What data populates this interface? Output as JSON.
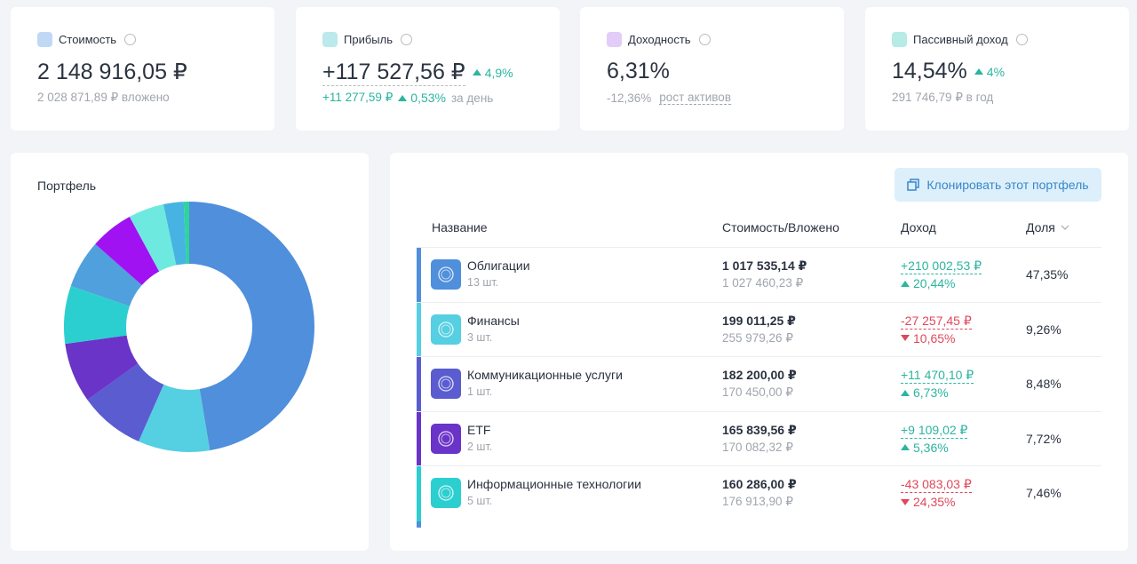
{
  "stats": [
    {
      "title": "Стоимость",
      "value": "2 148 916,05 ₽",
      "sub": "2 028 871,89 ₽ вложено",
      "color": "#4a90e2"
    },
    {
      "title": "Прибыль",
      "value": "+117 527,56 ₽",
      "change": "4,9%",
      "sub": "+11 277,59 ₽",
      "sub_change": "0,53%",
      "sub_suffix": "за день",
      "color": "#3cc1c9"
    },
    {
      "title": "Доходность",
      "value": "6,31%",
      "sub": "-12,36%",
      "sub_link": "рост активов",
      "color": "#b06ee8"
    },
    {
      "title": "Пассивный доход",
      "value": "14,54%",
      "change": "4%",
      "sub": "291 746,79 ₽ в год",
      "color": "#2ec7b6"
    }
  ],
  "portfolio": {
    "title": "Портфель",
    "chart": {
      "type": "pie",
      "values": [
        47.35,
        9.26,
        8.48,
        7.72,
        7.46,
        6.2,
        5.6,
        4.6,
        2.6,
        0.7
      ],
      "colors": [
        "#4f8fdc",
        "#55cfe2",
        "#5a5cd0",
        "#6a34c8",
        "#2ccfd0",
        "#4fa0dc",
        "#a012f2",
        "#6ee9df",
        "#46b3e3",
        "#2fd49a"
      ]
    }
  },
  "clone_button": "Клонировать этот портфель",
  "table": {
    "columns": [
      "Название",
      "Стоимость/Вложено",
      "Доход",
      "Доля"
    ],
    "rows": [
      {
        "name": "Облигации",
        "count": "13 шт.",
        "value": "1 017 535,14 ₽",
        "invested": "1 027 460,23 ₽",
        "income": "+210 002,53 ₽",
        "income_pct": "20,44%",
        "direction": "up",
        "share": "47,35%",
        "color": "#4f8fdc"
      },
      {
        "name": "Финансы",
        "count": "3 шт.",
        "value": "199 011,25 ₽",
        "invested": "255 979,26 ₽",
        "income": "-27 257,45 ₽",
        "income_pct": "10,65%",
        "direction": "down",
        "share": "9,26%",
        "color": "#55cfe2"
      },
      {
        "name": "Коммуникационные услуги",
        "count": "1 шт.",
        "value": "182 200,00 ₽",
        "invested": "170 450,00 ₽",
        "income": "+11 470,10 ₽",
        "income_pct": "6,73%",
        "direction": "up",
        "share": "8,48%",
        "color": "#5a5cd0"
      },
      {
        "name": "ETF",
        "count": "2 шт.",
        "value": "165 839,56 ₽",
        "invested": "170 082,32 ₽",
        "income": "+9 109,02 ₽",
        "income_pct": "5,36%",
        "direction": "up",
        "share": "7,72%",
        "color": "#6a34c8"
      },
      {
        "name": "Информационные технологии",
        "count": "5 шт.",
        "value": "160 286,00 ₽",
        "invested": "176 913,90 ₽",
        "income": "-43 083,03 ₽",
        "income_pct": "24,35%",
        "direction": "down",
        "share": "7,46%",
        "color": "#2ccfd0"
      }
    ]
  }
}
